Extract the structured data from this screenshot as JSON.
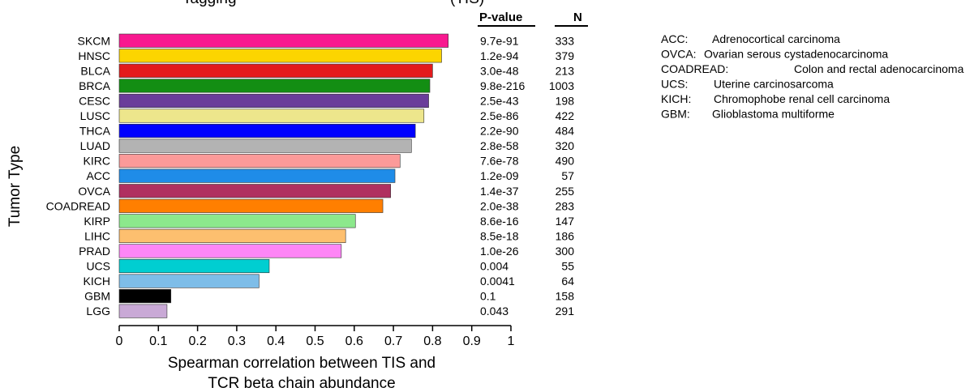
{
  "chart_data": {
    "type": "bar",
    "orientation": "horizontal",
    "title_fragment": "Tagging",
    "title_fragment_right": "(TIS)",
    "categories": [
      "SKCM",
      "HNSC",
      "BLCA",
      "BRCA",
      "CESC",
      "LUSC",
      "THCA",
      "LUAD",
      "KIRC",
      "ACC",
      "OVCA",
      "COADREAD",
      "KIRP",
      "LIHC",
      "PRAD",
      "UCS",
      "KICH",
      "GBM",
      "LGG"
    ],
    "values": [
      0.84,
      0.823,
      0.8,
      0.793,
      0.79,
      0.778,
      0.756,
      0.746,
      0.717,
      0.704,
      0.693,
      0.673,
      0.603,
      0.578,
      0.567,
      0.383,
      0.357,
      0.132,
      0.122
    ],
    "colors": [
      "#f8198f",
      "#fcd500",
      "#e31a1c",
      "#138e13",
      "#6a3d9a",
      "#ede68c",
      "#0000ff",
      "#b3b3b3",
      "#fb9a99",
      "#1f8ce8",
      "#b03060",
      "#ff7f00",
      "#8ce88c",
      "#fdbf6f",
      "#fe86f6",
      "#00ced1",
      "#7ebde8",
      "#000000",
      "#c9a9d6"
    ],
    "xlabel": "Spearman correlation between TIS and TCR beta chain abundance",
    "xlabel_lines": [
      "Spearman correlation between TIS and",
      "TCR beta chain abundance"
    ],
    "ylabel": "Tumor Type",
    "xlim": [
      0,
      1
    ],
    "xticks": [
      "0",
      "0.1",
      "0.2",
      "0.3",
      "0.4",
      "0.5",
      "0.6",
      "0.7",
      "0.8",
      "0.9",
      "1"
    ],
    "grid": false,
    "table_headers": {
      "pvalue": "P-value",
      "n": "N"
    },
    "pvalues": [
      "9.7e-91",
      "1.2e-94",
      "3.0e-48",
      "9.8e-216",
      "2.5e-43",
      "2.5e-86",
      "2.2e-90",
      "2.8e-58",
      "7.6e-78",
      "1.2e-09",
      "1.4e-37",
      "2.0e-38",
      "8.6e-16",
      "8.5e-18",
      "1.0e-26",
      "0.004",
      "0.0041",
      "0.1",
      "0.043"
    ],
    "n": [
      "333",
      "379",
      "213",
      "1003",
      "198",
      "422",
      "484",
      "320",
      "490",
      "57",
      "255",
      "283",
      "147",
      "186",
      "300",
      "55",
      "64",
      "158",
      "291"
    ],
    "abbreviation_legend": [
      {
        "abbr": "ACC:",
        "name": "Adrenocortical carcinoma"
      },
      {
        "abbr": "OVCA:",
        "name": "Ovarian serous cystadenocarcinoma"
      },
      {
        "abbr": "COADREAD:",
        "name": "Colon and rectal adenocarcinoma"
      },
      {
        "abbr": "UCS:",
        "name": "Uterine carcinosarcoma"
      },
      {
        "abbr": "KICH:",
        "name": "Chromophobe renal cell carcinoma"
      },
      {
        "abbr": "GBM:",
        "name": "Glioblastoma multiforme"
      }
    ]
  }
}
